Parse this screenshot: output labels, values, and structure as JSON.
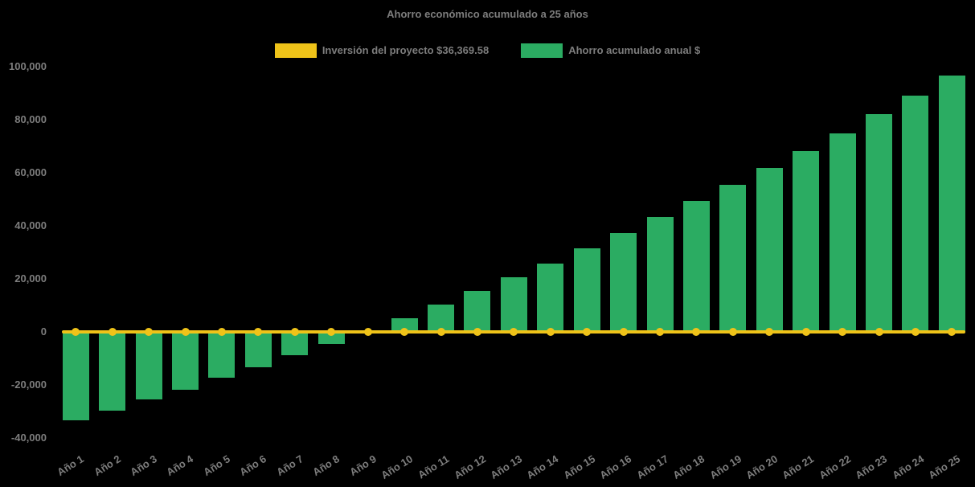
{
  "title": "Ahorro económico acumulado a 25 años",
  "colors": {
    "background": "#000000",
    "bar_green": "#2BAC62",
    "line_yellow": "#EFC319",
    "text_gray": "#7D7D7D"
  },
  "legend": {
    "items": [
      {
        "label": "Inversión del proyecto $36,369.58",
        "color": "#EFC319",
        "swatch": "investment-swatch"
      },
      {
        "label": "Ahorro acumulado anual $",
        "color": "#2BAC62",
        "swatch": "savings-swatch"
      }
    ]
  },
  "chart_data": {
    "type": "bar",
    "title": "Ahorro económico acumulado a 25 años",
    "categories": [
      "Año 1",
      "Año 2",
      "Año 3",
      "Año 4",
      "Año 5",
      "Año 6",
      "Año 7",
      "Año 8",
      "Año 9",
      "Año 10",
      "Año 11",
      "Año 12",
      "Año 13",
      "Año 14",
      "Año 15",
      "Año 16",
      "Año 17",
      "Año 18",
      "Año 19",
      "Año 20",
      "Año 21",
      "Año 22",
      "Año 23",
      "Año 24",
      "Año 25"
    ],
    "series": [
      {
        "name": "Ahorro acumulado anual $",
        "render": "bar",
        "color": "#2BAC62",
        "values": [
          -33400,
          -29600,
          -25600,
          -21900,
          -17400,
          -13200,
          -8800,
          -4500,
          100,
          5200,
          10200,
          15400,
          20500,
          25800,
          31600,
          37400,
          43400,
          49300,
          55500,
          61800,
          68300,
          74800,
          82200,
          89200,
          96800
        ]
      },
      {
        "name": "Inversión del proyecto $36,369.58",
        "render": "line",
        "color": "#EFC319",
        "values": [
          0,
          0,
          0,
          0,
          0,
          0,
          0,
          0,
          0,
          0,
          0,
          0,
          0,
          0,
          0,
          0,
          0,
          0,
          0,
          0,
          0,
          0,
          0,
          0,
          0
        ],
        "note": "flat marker line drawn at y = 0"
      }
    ],
    "investment_amount_label": "$36,369.58",
    "xlabel": "",
    "ylabel": "",
    "ylim": [
      -40000,
      100000
    ],
    "yticks": [
      100000,
      80000,
      60000,
      40000,
      20000,
      0,
      -20000,
      -40000
    ],
    "grid": false,
    "legend_position": "top-center"
  }
}
